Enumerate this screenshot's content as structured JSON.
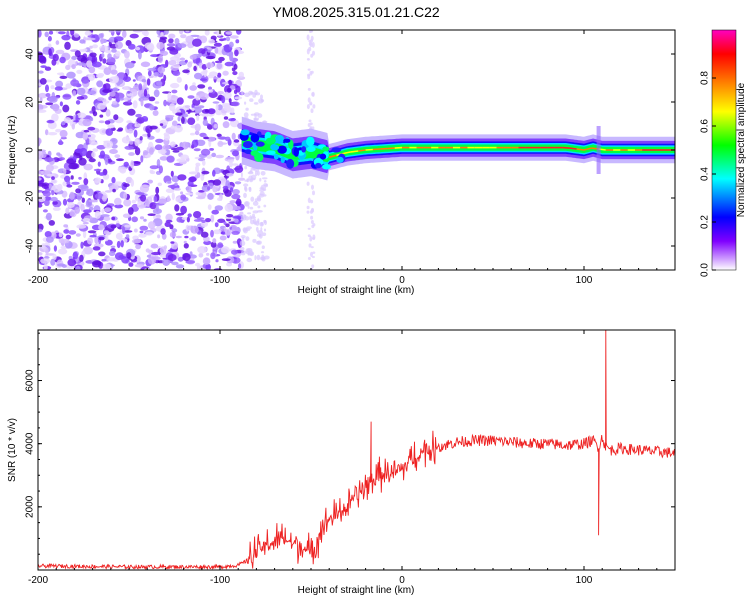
{
  "chart_data": [
    {
      "type": "heatmap",
      "title": "YM08.2025.315.01.21.C22",
      "xlabel": "Height of straight line (km)",
      "ylabel": "Frequency (Hz)",
      "xlim": [
        -200,
        150
      ],
      "ylim": [
        -50,
        50
      ],
      "xticks": [
        -200,
        -100,
        0,
        100
      ],
      "yticks": [
        -40,
        -20,
        0,
        20,
        40
      ],
      "colorbar": {
        "label": "Normalized spectral amplitude",
        "range": [
          0,
          1
        ],
        "ticks": [
          "0.0",
          "0.2",
          "0.4",
          "0.6",
          "0.8"
        ],
        "colormap": [
          "#ffffff",
          "#8000ff",
          "#0000ff",
          "#00ffff",
          "#00ff00",
          "#ffff00",
          "#ff8000",
          "#ff0000",
          "#ff00c0"
        ]
      },
      "noise_region": [
        -200,
        -88
      ],
      "signal_onset_km": -88,
      "ridge": {
        "x": [
          -88,
          -80,
          -70,
          -60,
          -50,
          -40,
          -30,
          -20,
          -10,
          0,
          20,
          40,
          60,
          80,
          90,
          100,
          105,
          110,
          130,
          150
        ],
        "y": [
          4,
          2,
          1,
          -2,
          -1,
          -3,
          -1,
          0,
          0.5,
          1,
          1,
          1,
          1,
          1,
          1,
          0,
          1,
          0,
          0,
          0
        ]
      }
    },
    {
      "type": "line",
      "xlabel": "Height of straight line (km)",
      "ylabel": "SNR (10 * v/v)",
      "xlim": [
        -200,
        150
      ],
      "ylim": [
        0,
        7600
      ],
      "xticks": [
        -200,
        -100,
        0,
        100
      ],
      "yticks": [
        2000,
        4000,
        6000
      ],
      "color": "#ee2222",
      "series": [
        {
          "x": [
            -200,
            -150,
            -100,
            -90,
            -85,
            -80,
            -75,
            -70,
            -65,
            -60,
            -55,
            -50,
            -45,
            -40,
            -35,
            -30,
            -25,
            -20,
            -15,
            -10,
            -5,
            0,
            5,
            10,
            20,
            30,
            40,
            50,
            60,
            70,
            80,
            90,
            100,
            105,
            108,
            110,
            112,
            115,
            120,
            130,
            140,
            150
          ],
          "y": [
            130,
            100,
            100,
            150,
            300,
            550,
            800,
            900,
            1000,
            850,
            750,
            500,
            1200,
            1600,
            1800,
            2000,
            2400,
            2600,
            2900,
            3100,
            3000,
            3200,
            3500,
            3700,
            3900,
            4050,
            4100,
            4100,
            4050,
            4000,
            4000,
            3950,
            4000,
            4100,
            3900,
            4200,
            3900,
            3800,
            3850,
            3800,
            3750,
            3700
          ]
        }
      ],
      "annotations": [
        {
          "x": -17,
          "y": 4700
        },
        {
          "x": 108,
          "y": 1100
        },
        {
          "x": 112,
          "y": 7600
        }
      ]
    }
  ]
}
